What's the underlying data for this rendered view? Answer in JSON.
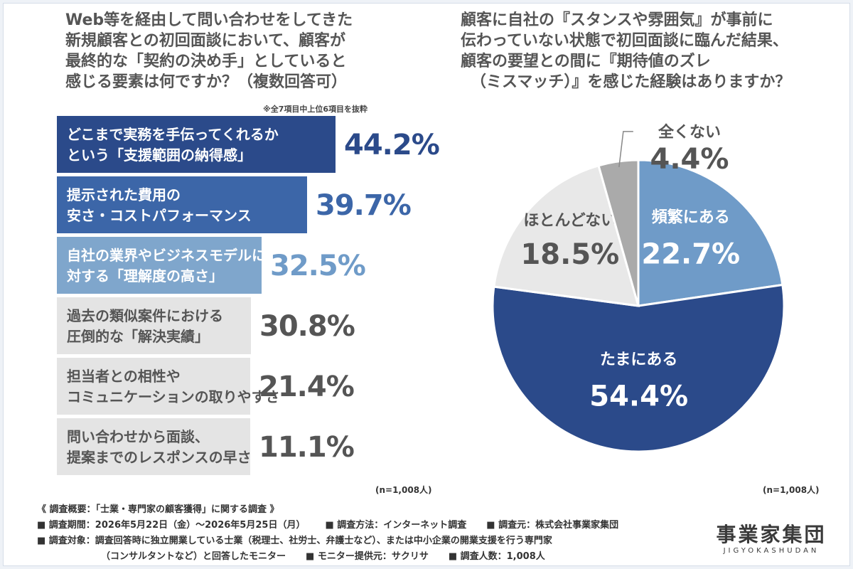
{
  "left_chart": {
    "title_lines": [
      "Web等を経由して問い合わせをしてきた",
      "新規顧客との初回面談において、顧客が",
      "最終的な「契約の決め手」としていると",
      "感じる要素は何ですか？（複数回答可）"
    ],
    "note": "※全7項目中上位6項目を抜粋",
    "n_label": "(n=1,008人)"
  },
  "right_chart": {
    "title_lines": [
      "顧客に自社の『スタンスや雰囲気』が事前に",
      "伝わっていない状態で初回面談に臨んだ結果、",
      "顧客の要望との間に『期待値のズレ",
      "（ミスマッチ）』を感じた経験はありますか？"
    ],
    "n_label": "(n=1,008人)"
  },
  "chart_data": [
    {
      "type": "bar",
      "orientation": "horizontal",
      "categories": [
        [
          "どこまで実務を手伝ってくれるか",
          "という「支援範囲の納得感」"
        ],
        [
          "提示された費用の",
          "安さ・コストパフォーマンス"
        ],
        [
          "自社の業界やビジネスモデルに",
          "対する「理解度の高さ」"
        ],
        [
          "過去の類似案件における",
          "圧倒的な「解決実績」"
        ],
        [
          "担当者との相性や",
          "コミュニケーションの取りやすさ"
        ],
        [
          "問い合わせから面談、",
          "提案までのレスポンスの早さ"
        ]
      ],
      "values": [
        44.2,
        39.7,
        32.5,
        30.8,
        21.4,
        11.1
      ],
      "value_labels": [
        "44.2%",
        "39.7%",
        "32.5%",
        "30.8%",
        "21.4%",
        "11.1%"
      ],
      "colors": [
        "#2b4a8a",
        "#3c66a8",
        "#7fa6cc",
        "#e4e4e4",
        "#e4e4e4",
        "#e4e4e4"
      ],
      "label_colors": [
        "#ffffff",
        "#ffffff",
        "#ffffff",
        "#555555",
        "#555555",
        "#555555"
      ],
      "value_colors": [
        "#2b4a8a",
        "#3c66a8",
        "#6f9bc8",
        "#555555",
        "#555555",
        "#555555"
      ]
    },
    {
      "type": "pie",
      "start": "12 o'clock",
      "direction": "clockwise",
      "slices": [
        {
          "label": "頻繁にある",
          "value": 22.7,
          "value_label": "22.7%",
          "color": "#6f9bc8",
          "text_color": "#ffffff"
        },
        {
          "label": "たまにある",
          "value": 54.4,
          "value_label": "54.4%",
          "color": "#2b4a8a",
          "text_color": "#ffffff"
        },
        {
          "label": "ほとんどない",
          "value": 18.5,
          "value_label": "18.5%",
          "color": "#e8e8e8",
          "text_color": "#555555"
        },
        {
          "label": "全くない",
          "value": 4.4,
          "value_label": "4.4%",
          "color": "#aaaaaa",
          "text_color": "#555555"
        }
      ]
    }
  ],
  "footer": {
    "summary": "《 調査概要：「士業・専門家の顧客獲得」に関する調査 》",
    "period": "■ 調査期間：2026年5月22日（金）〜2026年5月25日（月）",
    "method": "■ 調査方法：インターネット調査",
    "source": "■ 調査元：株式会社事業家集団",
    "target": "■ 調査対象：調査回答時に独立開業している士業（税理士、社労士、弁護士など）、または中小企業の開業支援を行う専門家",
    "target_cont": "（コンサルタントなど）と回答したモニター",
    "provider": "■ モニター提供元：サクリサ",
    "count": "■ 調査人数：1,008人"
  },
  "logo": {
    "main": "事業家集団",
    "sub": "JIGYOKASHUDAN"
  }
}
